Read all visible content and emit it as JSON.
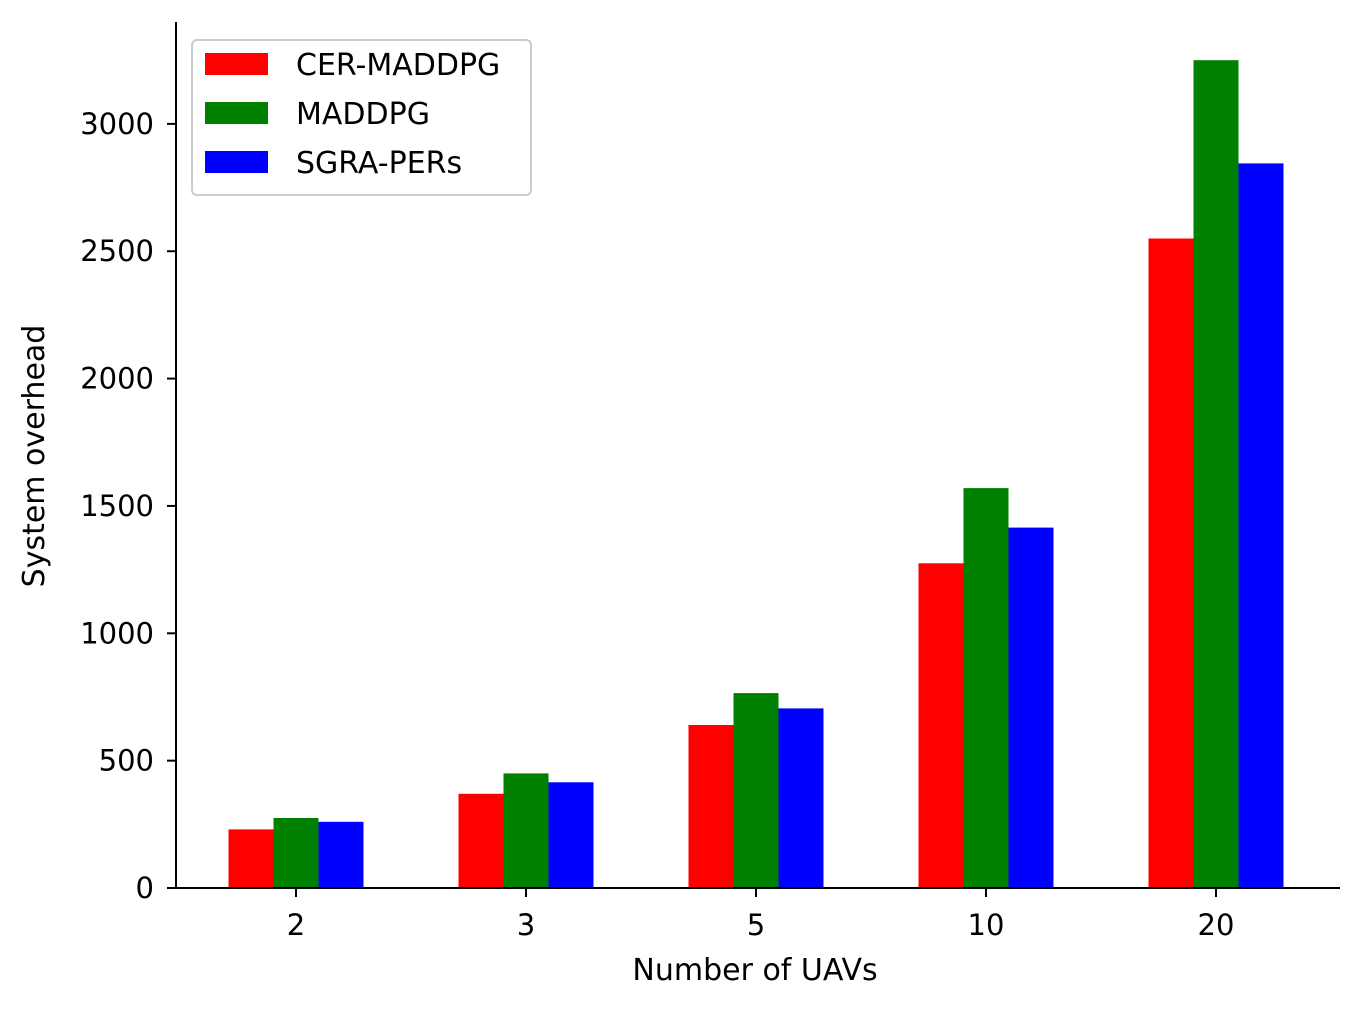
{
  "chart_data": {
    "type": "bar",
    "title": "",
    "xlabel": "Number of UAVs",
    "ylabel": "System overhead",
    "categories": [
      "2",
      "3",
      "5",
      "10",
      "20"
    ],
    "ylim": [
      0,
      3400
    ],
    "yticks": [
      0,
      500,
      1000,
      1500,
      2000,
      2500,
      3000
    ],
    "grid": false,
    "legend_position": "top-left",
    "series": [
      {
        "name": "CER-MADDPG",
        "color": "#ff0000",
        "values": [
          230,
          370,
          640,
          1275,
          2550
        ]
      },
      {
        "name": "MADDPG",
        "color": "#008000",
        "values": [
          275,
          450,
          765,
          1570,
          3250
        ]
      },
      {
        "name": "SGRA-PERs",
        "color": "#0000ff",
        "values": [
          260,
          415,
          705,
          1415,
          2845
        ]
      }
    ]
  }
}
